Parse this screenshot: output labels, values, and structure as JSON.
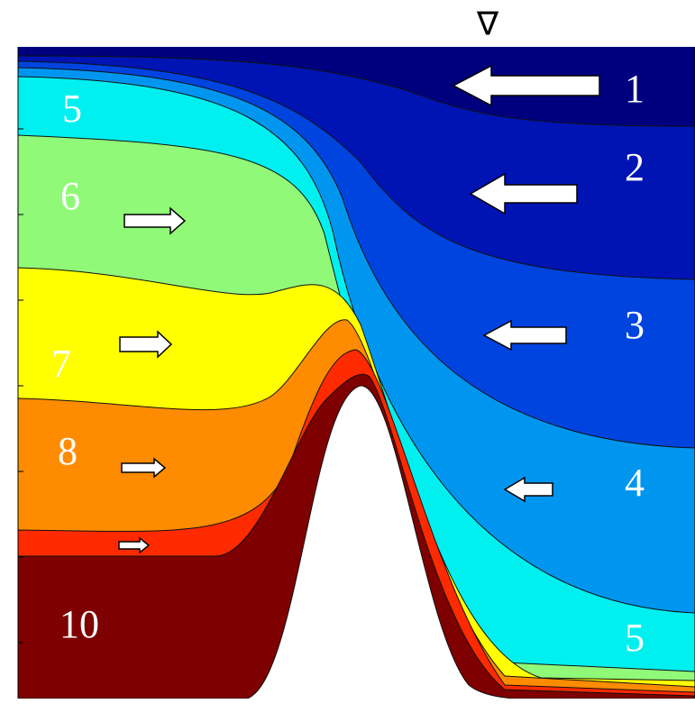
{
  "symbol": "∇",
  "layer_labels": [
    "1",
    "2",
    "3",
    "4",
    "5",
    "5",
    "6",
    "7",
    "8",
    "10"
  ]
}
